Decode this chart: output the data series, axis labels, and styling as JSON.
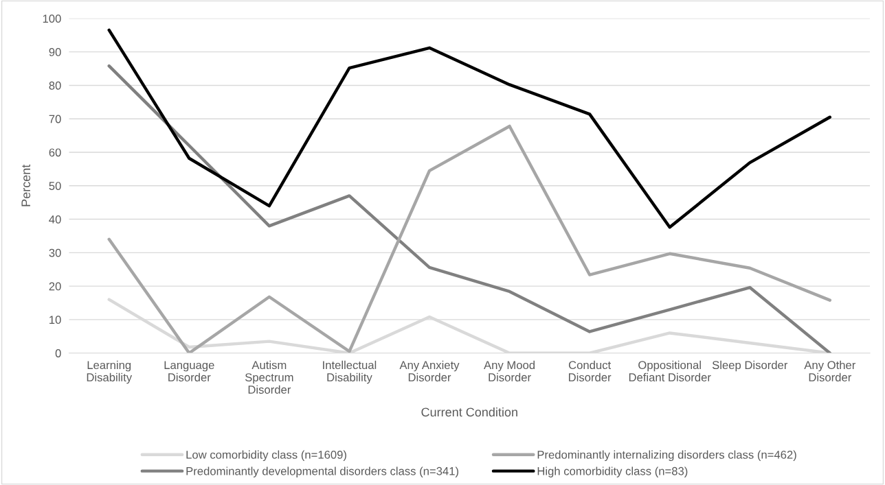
{
  "chart_data": {
    "type": "line",
    "xlabel": "Current Condition",
    "ylabel": "Percent",
    "categories": [
      "Learning\nDisability",
      "Language\nDisorder",
      "Autism\nSpectrum\nDisorder",
      "Intellectual\nDisability",
      "Any Anxiety\nDisorder",
      "Any Mood\nDisorder",
      "Conduct\nDisorder",
      "Oppositional\nDefiant Disorder",
      "Sleep Disorder",
      "Any Other\nDisorder"
    ],
    "series": [
      {
        "name": "Low comorbidity class (n=1609)",
        "color": "#d9d9d9",
        "values": [
          16,
          1.8,
          3.5,
          0,
          10.8,
          0,
          0,
          6,
          3,
          0
        ]
      },
      {
        "name": "Predominantly developmental disorders class (n=341)",
        "color": "#808080",
        "values": [
          85.8,
          62,
          38,
          47,
          25.6,
          18.4,
          6.4,
          13,
          19.6,
          0
        ]
      },
      {
        "name": "Predominantly internalizing disorders class (n=462)",
        "color": "#a6a6a6",
        "values": [
          34,
          0,
          16.8,
          0.5,
          54.5,
          67.8,
          23.4,
          29.7,
          25.4,
          15.8
        ]
      },
      {
        "name": "High comorbidity class (n=83)",
        "color": "#000000",
        "values": [
          96.5,
          58.2,
          44,
          85.2,
          91.2,
          80.2,
          71.4,
          37.6,
          56.9,
          70.5
        ]
      }
    ],
    "ylim": [
      0,
      100
    ],
    "yticks": [
      0,
      10,
      20,
      30,
      40,
      50,
      60,
      70,
      80,
      90,
      100
    ],
    "grid": "y",
    "legend": "bottom",
    "marker": "none",
    "line_style": "solid"
  }
}
